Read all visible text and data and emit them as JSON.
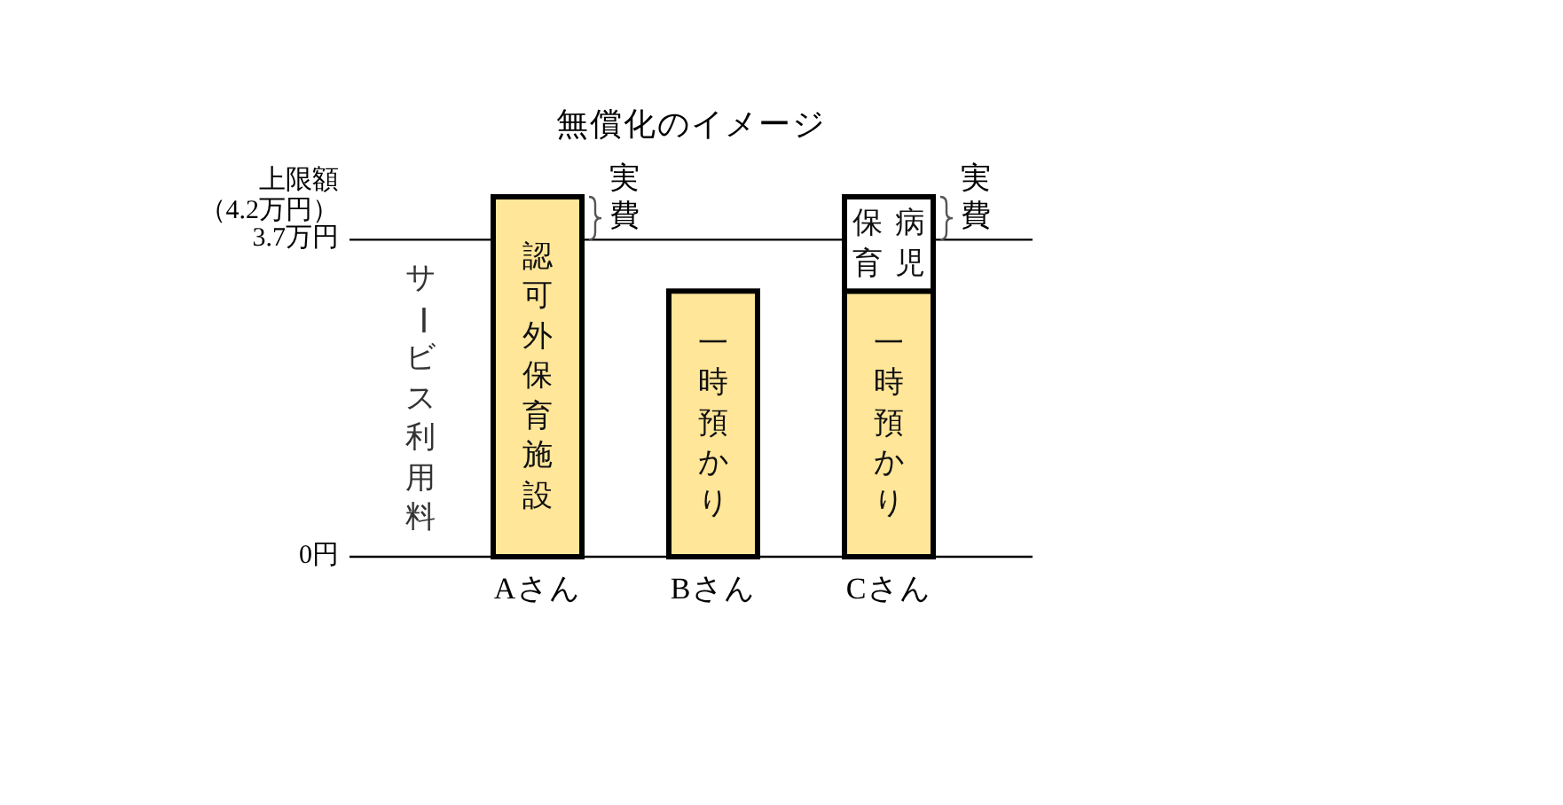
{
  "chart_data": {
    "type": "bar",
    "title": "無償化のイメージ",
    "ylabel": "サービス利用料",
    "categories": [
      "Aさん",
      "Bさん",
      "Cさん"
    ],
    "stacked": true,
    "series": [
      {
        "name": "認可外保育施設",
        "color": "#ffe699",
        "values": [
          4.2,
          null,
          null
        ]
      },
      {
        "name": "一時預かり",
        "color": "#ffe699",
        "values": [
          null,
          3.1,
          3.1
        ]
      },
      {
        "name": "病児保育",
        "color": "#ffffff",
        "values": [
          null,
          null,
          1.1
        ]
      }
    ],
    "ylim": [
      0,
      4.2
    ],
    "yticks": [
      {
        "value": 0,
        "label": "0円"
      },
      {
        "value": 3.7,
        "label": "3.7万円"
      },
      {
        "value": 4.2,
        "label": "上限額（4.2万円）"
      }
    ],
    "ref_lines": [
      {
        "axis": "y",
        "value": 3.7,
        "color": "#000000"
      }
    ],
    "annotations": [
      {
        "text": "実費",
        "x": "Aさん",
        "y": 4.2
      },
      {
        "text": "実費",
        "x": "Cさん",
        "y": 4.2
      }
    ]
  }
}
